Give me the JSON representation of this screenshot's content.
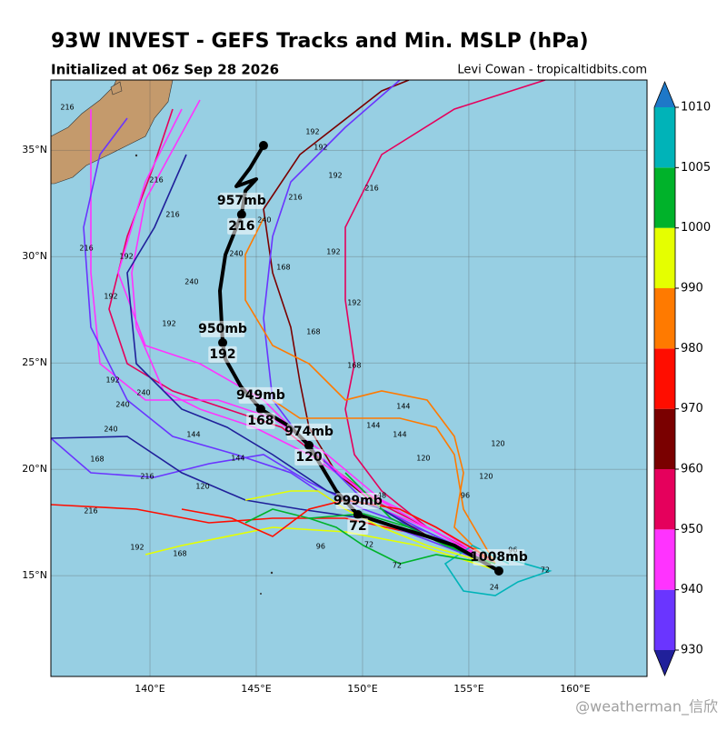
{
  "header": {
    "title": "93W INVEST - GEFS Tracks and Min. MSLP (hPa)",
    "subtitle": "Initialized at 06z Sep 28 2026",
    "credit": "Levi Cowan - tropicaltidbits.com"
  },
  "map": {
    "lon_range": [
      135.34,
      163.38
    ],
    "lat_range": [
      10.26,
      38.3
    ],
    "lon_ticks": [
      {
        "value": 140,
        "label": "140°E"
      },
      {
        "value": 145,
        "label": "145°E"
      },
      {
        "value": 150,
        "label": "150°E"
      },
      {
        "value": 155,
        "label": "155°E"
      },
      {
        "value": 160,
        "label": "160°E"
      }
    ],
    "lat_ticks": [
      {
        "value": 15,
        "label": "15°N"
      },
      {
        "value": 20,
        "label": "20°N"
      },
      {
        "value": 25,
        "label": "25°N"
      },
      {
        "value": 30,
        "label": "30°N"
      },
      {
        "value": 35,
        "label": "35°N"
      }
    ]
  },
  "colorbar": {
    "levels": [
      930,
      940,
      950,
      960,
      970,
      980,
      990,
      1000,
      1005,
      1010
    ],
    "colors": [
      "#6a35ff",
      "#ff33ff",
      "#e5005c",
      "#7a0000",
      "#ff0d00",
      "#ff7a00",
      "#e5ff00",
      "#00b22a",
      "#00b3b8"
    ],
    "under": "#20209a",
    "over": "#1e78c8"
  },
  "mean_track": [
    {
      "lon": 156.41,
      "lat": 15.22,
      "pressure": "1008mb"
    },
    {
      "lon": 154.31,
      "lat": 16.42
    },
    {
      "lon": 153.03,
      "lat": 16.85
    },
    {
      "lon": 151.32,
      "lat": 17.36
    },
    {
      "lon": 149.78,
      "lat": 17.87,
      "pressure": "999mb",
      "hour": "72"
    },
    {
      "lon": 148.76,
      "lat": 18.98
    },
    {
      "lon": 147.48,
      "lat": 21.12,
      "pressure": "974mb",
      "hour": "120"
    },
    {
      "lon": 146.62,
      "lat": 21.98
    },
    {
      "lon": 145.21,
      "lat": 22.83,
      "pressure": "949mb",
      "hour": "168"
    },
    {
      "lon": 144.27,
      "lat": 23.9
    },
    {
      "lon": 143.55,
      "lat": 25.18
    },
    {
      "lon": 143.42,
      "lat": 25.95,
      "pressure": "950mb",
      "hour": "192"
    },
    {
      "lon": 143.29,
      "lat": 28.39
    },
    {
      "lon": 143.55,
      "lat": 30.09
    },
    {
      "lon": 144.31,
      "lat": 31.98,
      "pressure": "957mb",
      "hour": "216"
    },
    {
      "lon": 144.49,
      "lat": 33.09
    },
    {
      "lon": 145.0,
      "lat": 33.64
    },
    {
      "lon": 144.06,
      "lat": 33.3
    },
    {
      "lon": 144.7,
      "lat": 34.15
    },
    {
      "lon": 145.34,
      "lat": 35.22
    }
  ],
  "track_labels": [
    {
      "text": "216",
      "lon": 136.11,
      "lat": 37.02
    },
    {
      "text": "216",
      "lon": 140.3,
      "lat": 33.6
    },
    {
      "text": "216",
      "lon": 141.07,
      "lat": 31.97
    },
    {
      "text": "216",
      "lon": 137.01,
      "lat": 30.39
    },
    {
      "text": "192",
      "lon": 138.89,
      "lat": 30.0
    },
    {
      "text": "192",
      "lon": 138.16,
      "lat": 28.13
    },
    {
      "text": "192",
      "lon": 140.9,
      "lat": 26.85
    },
    {
      "text": "240",
      "lon": 141.96,
      "lat": 28.81
    },
    {
      "text": "240",
      "lon": 144.06,
      "lat": 30.14
    },
    {
      "text": "240",
      "lon": 145.38,
      "lat": 31.72
    },
    {
      "text": "192",
      "lon": 147.65,
      "lat": 35.86
    },
    {
      "text": "192",
      "lon": 148.03,
      "lat": 35.14
    },
    {
      "text": "192",
      "lon": 148.72,
      "lat": 33.81
    },
    {
      "text": "216",
      "lon": 150.43,
      "lat": 33.21
    },
    {
      "text": "216",
      "lon": 146.84,
      "lat": 32.79
    },
    {
      "text": "192",
      "lon": 148.63,
      "lat": 30.22
    },
    {
      "text": "192",
      "lon": 149.61,
      "lat": 27.83
    },
    {
      "text": "168",
      "lon": 146.28,
      "lat": 29.5
    },
    {
      "text": "168",
      "lon": 147.69,
      "lat": 26.46
    },
    {
      "text": "168",
      "lon": 149.61,
      "lat": 24.88
    },
    {
      "text": "192",
      "lon": 138.25,
      "lat": 24.2
    },
    {
      "text": "240",
      "lon": 139.7,
      "lat": 23.6
    },
    {
      "text": "240",
      "lon": 138.72,
      "lat": 23.04
    },
    {
      "text": "240",
      "lon": 138.16,
      "lat": 21.89
    },
    {
      "text": "144",
      "lon": 142.05,
      "lat": 21.63
    },
    {
      "text": "168",
      "lon": 137.52,
      "lat": 20.48
    },
    {
      "text": "216",
      "lon": 139.87,
      "lat": 19.67
    },
    {
      "text": "144",
      "lon": 144.14,
      "lat": 20.52
    },
    {
      "text": "120",
      "lon": 142.48,
      "lat": 19.2
    },
    {
      "text": "192",
      "lon": 139.4,
      "lat": 16.33
    },
    {
      "text": "168",
      "lon": 141.41,
      "lat": 16.04
    },
    {
      "text": "216",
      "lon": 137.22,
      "lat": 18.04
    },
    {
      "text": "144",
      "lon": 151.75,
      "lat": 21.63
    },
    {
      "text": "120",
      "lon": 152.86,
      "lat": 20.52
    },
    {
      "text": "120",
      "lon": 156.37,
      "lat": 21.21
    },
    {
      "text": "120",
      "lon": 155.81,
      "lat": 19.67
    },
    {
      "text": "96",
      "lon": 154.83,
      "lat": 18.77
    },
    {
      "text": "96",
      "lon": 157.07,
      "lat": 16.21
    },
    {
      "text": "72",
      "lon": 158.59,
      "lat": 15.27
    },
    {
      "text": "24",
      "lon": 156.19,
      "lat": 14.45
    },
    {
      "text": "48",
      "lon": 150.9,
      "lat": 18.77
    },
    {
      "text": "72",
      "lon": 150.3,
      "lat": 16.46
    },
    {
      "text": "72",
      "lon": 151.62,
      "lat": 15.48
    },
    {
      "text": "96",
      "lon": 148.03,
      "lat": 16.38
    },
    {
      "text": "144",
      "lon": 151.92,
      "lat": 22.96
    },
    {
      "text": "144",
      "lon": 150.51,
      "lat": 22.06
    }
  ],
  "watermark": "@weatherman_信欣"
}
